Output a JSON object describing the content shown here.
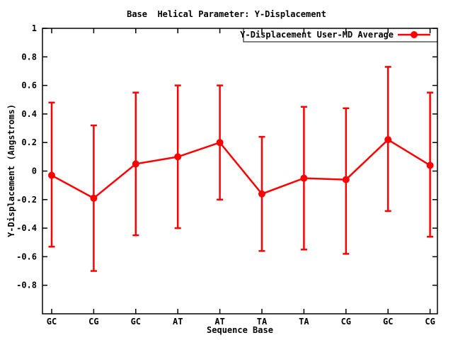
{
  "chart_data": {
    "type": "line",
    "title": "Base  Helical Parameter: Y-Displacement",
    "xlabel": "Sequence Base",
    "ylabel": "Y-Displacement (Angstroms)",
    "legend": {
      "label": "Y-Displacement User-MD Average",
      "position": "top-right",
      "boxed": true
    },
    "series_color": "#ff0000",
    "frame_color": "#000000",
    "background_color": "#ffffff",
    "categories": [
      "GC",
      "CG",
      "GC",
      "AT",
      "AT",
      "TA",
      "TA",
      "CG",
      "GC",
      "CG"
    ],
    "values": [
      -0.03,
      -0.19,
      0.05,
      0.1,
      0.2,
      -0.16,
      -0.05,
      -0.06,
      0.22,
      0.04
    ],
    "error_high": [
      0.48,
      0.32,
      0.55,
      0.6,
      0.6,
      0.24,
      0.45,
      0.44,
      0.73,
      0.55
    ],
    "error_low": [
      -0.53,
      -0.7,
      -0.45,
      -0.4,
      -0.2,
      -0.56,
      -0.55,
      -0.58,
      -0.28,
      -0.46
    ],
    "ylim": [
      -1,
      1
    ],
    "yticks": [
      1,
      0.8,
      0.6,
      0.4,
      0.2,
      0,
      -0.2,
      -0.4,
      -0.6,
      -0.8
    ],
    "ytick_labels": [
      "1",
      "0.8",
      "0.6",
      "0.4",
      "0.2",
      "0",
      "-0.2",
      "-0.4",
      "-0.6",
      "-0.8"
    ],
    "grid": false,
    "marker": "filled-circle"
  }
}
